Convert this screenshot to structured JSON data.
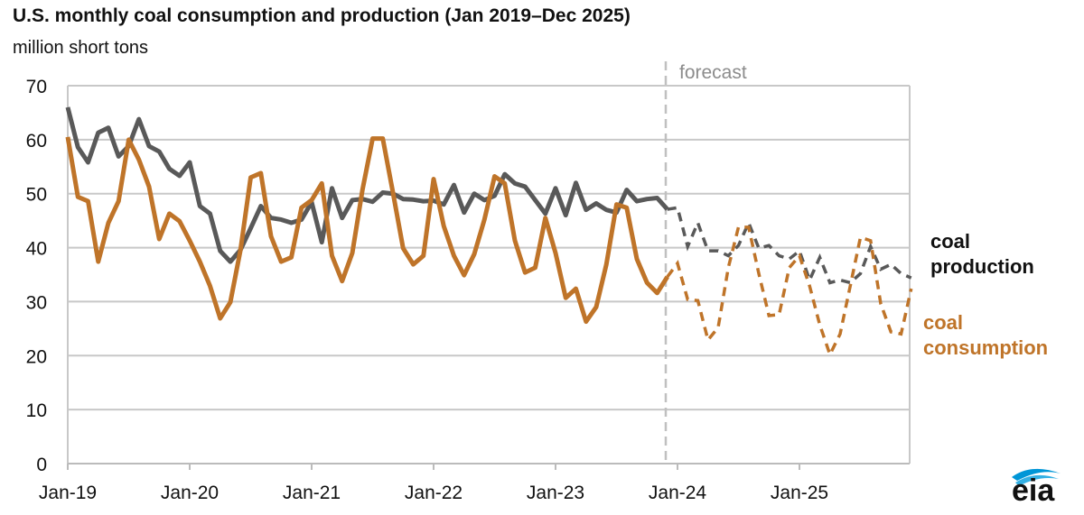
{
  "title": "U.S. monthly coal consumption and production (Jan 2019–Dec 2025)",
  "unit": "million short tons",
  "forecast_label": "forecast",
  "logo_text": "eia",
  "colors": {
    "production": "#595959",
    "consumption": "#bf7429",
    "grid": "#c8c8c8"
  },
  "chart_data": {
    "type": "line",
    "title": "U.S. monthly coal consumption and production (Jan 2019–Dec 2025)",
    "ylabel": "million short tons",
    "ylim": [
      0,
      70
    ],
    "yticks": [
      "0",
      "10",
      "20",
      "30",
      "40",
      "50",
      "60",
      "70"
    ],
    "xtick_labels": [
      "Jan-19",
      "Jan-20",
      "Jan-21",
      "Jan-22",
      "Jan-23",
      "Jan-24",
      "Jan-25"
    ],
    "x_start": "2019-01",
    "months": 84,
    "forecast_start_index": 59,
    "grid": true,
    "series": [
      {
        "name": "coal production",
        "label_lines": [
          "coal",
          "production"
        ],
        "values": [
          66,
          58.6,
          55.8,
          61.3,
          62.2,
          56.9,
          58.8,
          63.8,
          58.8,
          57.8,
          54.6,
          53.3,
          55.8,
          47.7,
          46.3,
          39.4,
          37.4,
          39.6,
          43.6,
          47.7,
          45.5,
          45.2,
          44.6,
          45.2,
          48.4,
          41,
          51,
          45.5,
          48.8,
          49,
          48.5,
          50.2,
          50,
          49,
          48.9,
          48.6,
          48.7,
          48,
          51.6,
          46.5,
          50,
          48.8,
          49.6,
          53.6,
          51.9,
          51.3,
          48.8,
          46.3,
          51,
          46,
          52,
          47,
          48.2,
          47,
          46.5,
          50.7,
          48.6,
          49,
          49.2,
          47.1,
          47.4,
          40.2,
          44.6,
          39.4,
          39.4,
          38.5,
          40.4,
          44.6,
          39.9,
          40.4,
          38.5,
          37.9,
          39.4,
          34,
          38.2,
          33.5,
          34,
          33.5,
          35.2,
          40.2,
          36,
          36.9,
          35.2,
          34.4
        ]
      },
      {
        "name": "coal consumption",
        "label_lines": [
          "coal",
          "consumption"
        ],
        "values": [
          60.5,
          49.4,
          48.6,
          37.4,
          44.6,
          48.6,
          60,
          56.3,
          51.3,
          41.6,
          46.3,
          44.9,
          41.3,
          37.4,
          32.9,
          26.9,
          29.9,
          39.6,
          53,
          53.8,
          42.1,
          37.4,
          38.2,
          47.4,
          48.8,
          51.9,
          38.5,
          33.8,
          39,
          50.7,
          60.2,
          60.2,
          50.2,
          39.9,
          36.9,
          38.5,
          52.7,
          44,
          38.5,
          34.9,
          38.8,
          45.2,
          53.2,
          51.9,
          41.3,
          35.4,
          36.3,
          45.5,
          39,
          30.7,
          32.4,
          26.3,
          29,
          36.9,
          48,
          47.4,
          37.9,
          33.5,
          31.6,
          34.6,
          37.1,
          30.4,
          30.2,
          22.9,
          25.2,
          36.3,
          43.8,
          43.8,
          35.2,
          27.4,
          27.6,
          36.3,
          38.5,
          32.9,
          25.7,
          20.2,
          24,
          32.9,
          41.9,
          41.3,
          29.6,
          24.4,
          24,
          32.4
        ]
      }
    ]
  }
}
